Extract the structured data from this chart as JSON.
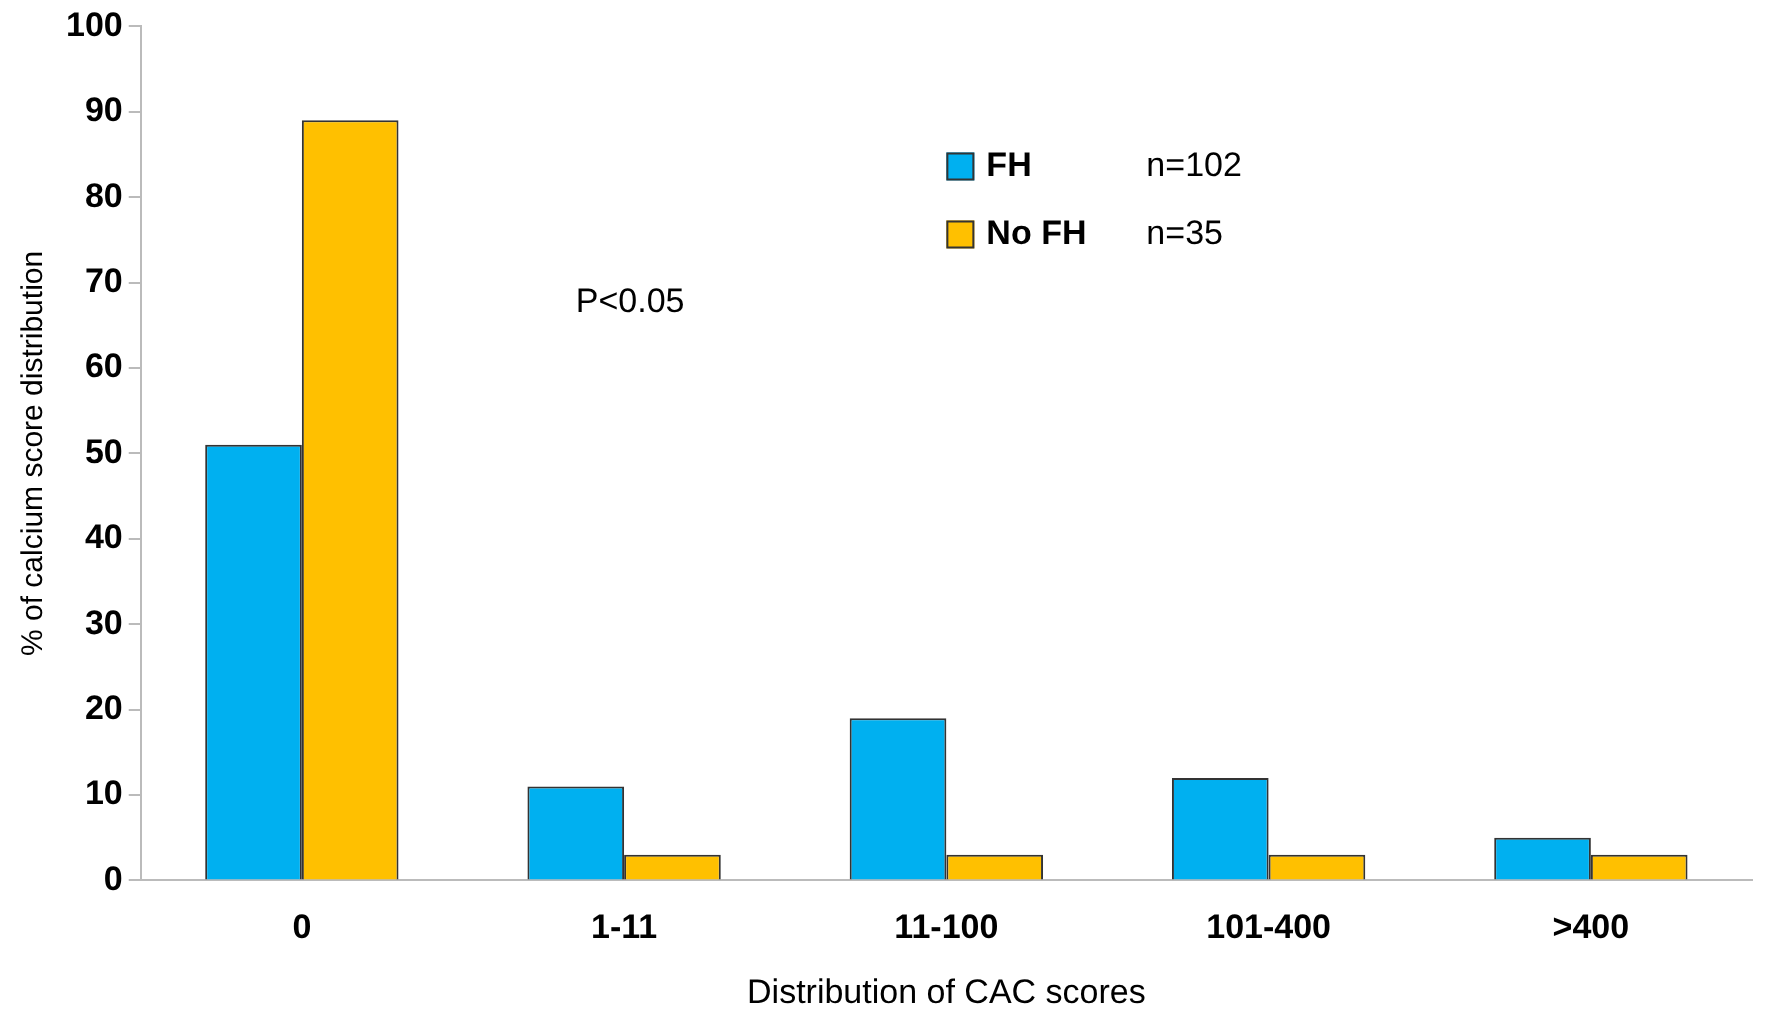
{
  "chart_data": {
    "type": "bar",
    "xlabel": "Distribution of CAC scores",
    "ylabel": "% of calcium score distribution",
    "categories": [
      "0",
      "1-11",
      "11-100",
      "101-400",
      ">400"
    ],
    "series": [
      {
        "name": "FH",
        "color": "#00b0f0",
        "values": [
          51,
          11,
          19,
          12,
          5
        ]
      },
      {
        "name": "No FH",
        "color": "#ffc000",
        "values": [
          89,
          3,
          3,
          3,
          3
        ]
      }
    ],
    "ylim": [
      0,
      100
    ],
    "yticks": [
      0,
      10,
      20,
      30,
      40,
      50,
      60,
      70,
      80,
      90,
      100
    ],
    "grid": false,
    "legend": "top right",
    "annotations": [
      "P<0.05",
      "n=102",
      "n=35"
    ]
  }
}
